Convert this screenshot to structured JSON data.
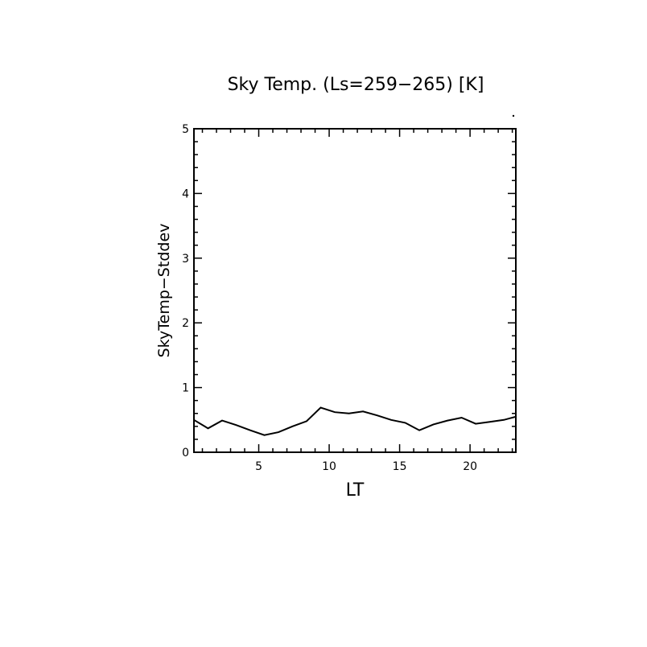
{
  "chart_data": {
    "type": "line",
    "title": "Sky Temp. (Ls=259−265) [K]",
    "xlabel": "LT",
    "ylabel": "SkyTemp−Stddev",
    "xlim": [
      0.4,
      23.25
    ],
    "ylim": [
      0,
      5
    ],
    "x_ticks": [
      5,
      10,
      15,
      20
    ],
    "y_ticks": [
      0,
      1,
      2,
      3,
      4,
      5
    ],
    "grid": false,
    "line_color": "#000000",
    "series": [
      {
        "x": [
          0.4,
          1.4,
          2.4,
          3.4,
          4.4,
          5.4,
          6.4,
          7.4,
          8.4,
          9.4,
          10.4,
          11.4,
          12.4,
          13.4,
          14.4,
          15.4,
          16.4,
          17.4,
          18.4,
          19.4,
          20.4,
          21.4,
          22.4,
          23.25
        ],
        "y": [
          0.5,
          0.37,
          0.49,
          0.42,
          0.34,
          0.265,
          0.31,
          0.4,
          0.48,
          0.69,
          0.62,
          0.6,
          0.63,
          0.57,
          0.5,
          0.455,
          0.34,
          0.43,
          0.49,
          0.535,
          0.44,
          0.47,
          0.5,
          0.55
        ]
      }
    ]
  }
}
